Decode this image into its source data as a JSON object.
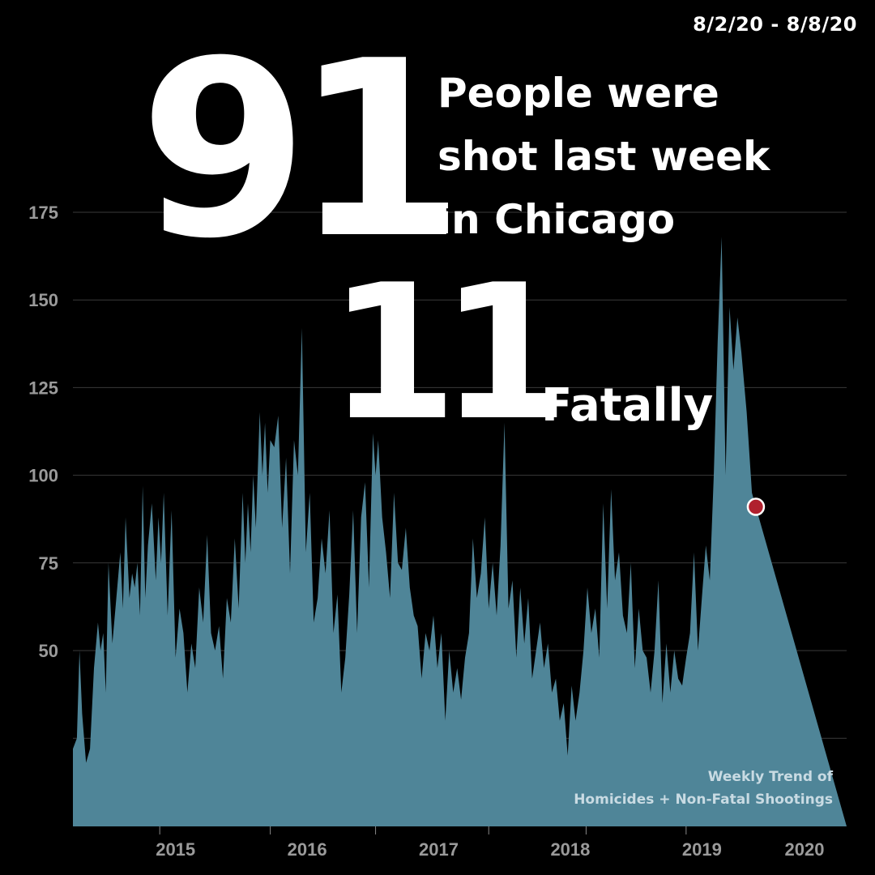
{
  "header": {
    "date_range": "8/2/20 - 8/8/20",
    "shot_count": "91",
    "headline_lines": [
      "People were",
      "shot last week",
      "in Chicago"
    ],
    "fatal_count": "11",
    "fatal_label": "Fatally"
  },
  "caption": {
    "lines": [
      "Weekly Trend of",
      "Homicides + Non-Fatal Shootings"
    ]
  },
  "colors": {
    "background": "#000000",
    "area_fill": "#4f8598",
    "gridline": "#3a3a3a",
    "highlight_point": "#b0202e"
  },
  "chart_data": {
    "type": "area",
    "title": "",
    "xlabel": "",
    "ylabel": "",
    "ylim": [
      0,
      175
    ],
    "yticks": [
      50,
      75,
      100,
      125,
      150,
      175
    ],
    "xticks": [
      {
        "label": "2015",
        "at": 2015.5
      },
      {
        "label": "2016",
        "at": 2016.5
      },
      {
        "label": "2017",
        "at": 2017.5
      },
      {
        "label": "2018",
        "at": 2018.5
      },
      {
        "label": "2019",
        "at": 2019.5
      },
      {
        "label": "2020",
        "at": 2020.28
      }
    ],
    "x_range": [
      2014.72,
      2020.6
    ],
    "grid": true,
    "series": [
      {
        "points": [
          [
            2014.72,
            22
          ],
          [
            2014.75,
            25
          ],
          [
            2014.77,
            50
          ],
          [
            2014.79,
            32
          ],
          [
            2014.82,
            18
          ],
          [
            2014.85,
            22
          ],
          [
            2014.88,
            45
          ],
          [
            2014.91,
            58
          ],
          [
            2014.93,
            50
          ],
          [
            2014.95,
            55
          ],
          [
            2014.97,
            38
          ],
          [
            2014.99,
            75
          ],
          [
            2015.02,
            52
          ],
          [
            2015.05,
            65
          ],
          [
            2015.08,
            78
          ],
          [
            2015.1,
            62
          ],
          [
            2015.12,
            88
          ],
          [
            2015.15,
            65
          ],
          [
            2015.17,
            72
          ],
          [
            2015.19,
            68
          ],
          [
            2015.21,
            75
          ],
          [
            2015.23,
            60
          ],
          [
            2015.25,
            97
          ],
          [
            2015.27,
            65
          ],
          [
            2015.29,
            80
          ],
          [
            2015.32,
            92
          ],
          [
            2015.35,
            70
          ],
          [
            2015.37,
            88
          ],
          [
            2015.39,
            75
          ],
          [
            2015.41,
            95
          ],
          [
            2015.44,
            60
          ],
          [
            2015.47,
            90
          ],
          [
            2015.5,
            48
          ],
          [
            2015.53,
            62
          ],
          [
            2015.56,
            55
          ],
          [
            2015.59,
            38
          ],
          [
            2015.62,
            52
          ],
          [
            2015.65,
            45
          ],
          [
            2015.68,
            68
          ],
          [
            2015.71,
            58
          ],
          [
            2015.74,
            83
          ],
          [
            2015.77,
            55
          ],
          [
            2015.8,
            50
          ],
          [
            2015.83,
            57
          ],
          [
            2015.86,
            42
          ],
          [
            2015.89,
            65
          ],
          [
            2015.92,
            58
          ],
          [
            2015.95,
            82
          ],
          [
            2015.98,
            62
          ],
          [
            2016.01,
            95
          ],
          [
            2016.03,
            75
          ],
          [
            2016.05,
            92
          ],
          [
            2016.07,
            78
          ],
          [
            2016.09,
            100
          ],
          [
            2016.11,
            85
          ],
          [
            2016.14,
            118
          ],
          [
            2016.16,
            100
          ],
          [
            2016.18,
            115
          ],
          [
            2016.2,
            95
          ],
          [
            2016.22,
            110
          ],
          [
            2016.25,
            108
          ],
          [
            2016.28,
            117
          ],
          [
            2016.31,
            85
          ],
          [
            2016.34,
            105
          ],
          [
            2016.37,
            72
          ],
          [
            2016.4,
            110
          ],
          [
            2016.43,
            100
          ],
          [
            2016.46,
            142
          ],
          [
            2016.49,
            78
          ],
          [
            2016.52,
            95
          ],
          [
            2016.55,
            58
          ],
          [
            2016.58,
            65
          ],
          [
            2016.61,
            82
          ],
          [
            2016.64,
            72
          ],
          [
            2016.67,
            90
          ],
          [
            2016.7,
            55
          ],
          [
            2016.73,
            66
          ],
          [
            2016.76,
            38
          ],
          [
            2016.79,
            48
          ],
          [
            2016.82,
            66
          ],
          [
            2016.85,
            90
          ],
          [
            2016.88,
            55
          ],
          [
            2016.91,
            88
          ],
          [
            2016.94,
            98
          ],
          [
            2016.97,
            68
          ],
          [
            2017.0,
            112
          ],
          [
            2017.02,
            100
          ],
          [
            2017.04,
            110
          ],
          [
            2017.07,
            88
          ],
          [
            2017.1,
            78
          ],
          [
            2017.13,
            65
          ],
          [
            2017.16,
            95
          ],
          [
            2017.19,
            75
          ],
          [
            2017.22,
            73
          ],
          [
            2017.25,
            85
          ],
          [
            2017.28,
            68
          ],
          [
            2017.31,
            60
          ],
          [
            2017.34,
            57
          ],
          [
            2017.37,
            42
          ],
          [
            2017.4,
            55
          ],
          [
            2017.43,
            50
          ],
          [
            2017.46,
            60
          ],
          [
            2017.49,
            45
          ],
          [
            2017.52,
            55
          ],
          [
            2017.55,
            30
          ],
          [
            2017.58,
            50
          ],
          [
            2017.61,
            38
          ],
          [
            2017.64,
            45
          ],
          [
            2017.67,
            36
          ],
          [
            2017.7,
            48
          ],
          [
            2017.73,
            55
          ],
          [
            2017.76,
            82
          ],
          [
            2017.79,
            65
          ],
          [
            2017.82,
            72
          ],
          [
            2017.85,
            88
          ],
          [
            2017.88,
            62
          ],
          [
            2017.91,
            75
          ],
          [
            2017.94,
            60
          ],
          [
            2017.97,
            80
          ],
          [
            2018.0,
            115
          ],
          [
            2018.03,
            62
          ],
          [
            2018.06,
            70
          ],
          [
            2018.09,
            48
          ],
          [
            2018.12,
            68
          ],
          [
            2018.15,
            52
          ],
          [
            2018.18,
            65
          ],
          [
            2018.21,
            42
          ],
          [
            2018.24,
            50
          ],
          [
            2018.27,
            58
          ],
          [
            2018.3,
            45
          ],
          [
            2018.33,
            52
          ],
          [
            2018.36,
            38
          ],
          [
            2018.39,
            42
          ],
          [
            2018.42,
            30
          ],
          [
            2018.45,
            35
          ],
          [
            2018.48,
            20
          ],
          [
            2018.51,
            40
          ],
          [
            2018.54,
            30
          ],
          [
            2018.57,
            38
          ],
          [
            2018.6,
            50
          ],
          [
            2018.63,
            68
          ],
          [
            2018.66,
            55
          ],
          [
            2018.69,
            62
          ],
          [
            2018.72,
            48
          ],
          [
            2018.75,
            92
          ],
          [
            2018.78,
            62
          ],
          [
            2018.81,
            96
          ],
          [
            2018.84,
            70
          ],
          [
            2018.87,
            78
          ],
          [
            2018.9,
            60
          ],
          [
            2018.93,
            55
          ],
          [
            2018.96,
            75
          ],
          [
            2018.99,
            45
          ],
          [
            2019.02,
            62
          ],
          [
            2019.05,
            50
          ],
          [
            2019.08,
            48
          ],
          [
            2019.11,
            38
          ],
          [
            2019.14,
            50
          ],
          [
            2019.17,
            70
          ],
          [
            2019.2,
            35
          ],
          [
            2019.23,
            52
          ],
          [
            2019.26,
            38
          ],
          [
            2019.29,
            50
          ],
          [
            2019.32,
            42
          ],
          [
            2019.35,
            40
          ],
          [
            2019.38,
            48
          ],
          [
            2019.41,
            55
          ],
          [
            2019.44,
            78
          ],
          [
            2019.47,
            50
          ],
          [
            2019.5,
            65
          ],
          [
            2019.53,
            80
          ],
          [
            2019.56,
            70
          ],
          [
            2019.59,
            100
          ],
          [
            2019.62,
            138
          ],
          [
            2019.65,
            168
          ],
          [
            2019.68,
            100
          ],
          [
            2019.71,
            148
          ],
          [
            2019.74,
            130
          ],
          [
            2019.77,
            145
          ],
          [
            2019.8,
            135
          ],
          [
            2019.84,
            118
          ],
          [
            2019.88,
            95
          ],
          [
            2019.91,
            91
          ]
        ]
      }
    ],
    "highlight_point": {
      "value": 91,
      "label": "8/2/20 - 8/8/20"
    }
  }
}
